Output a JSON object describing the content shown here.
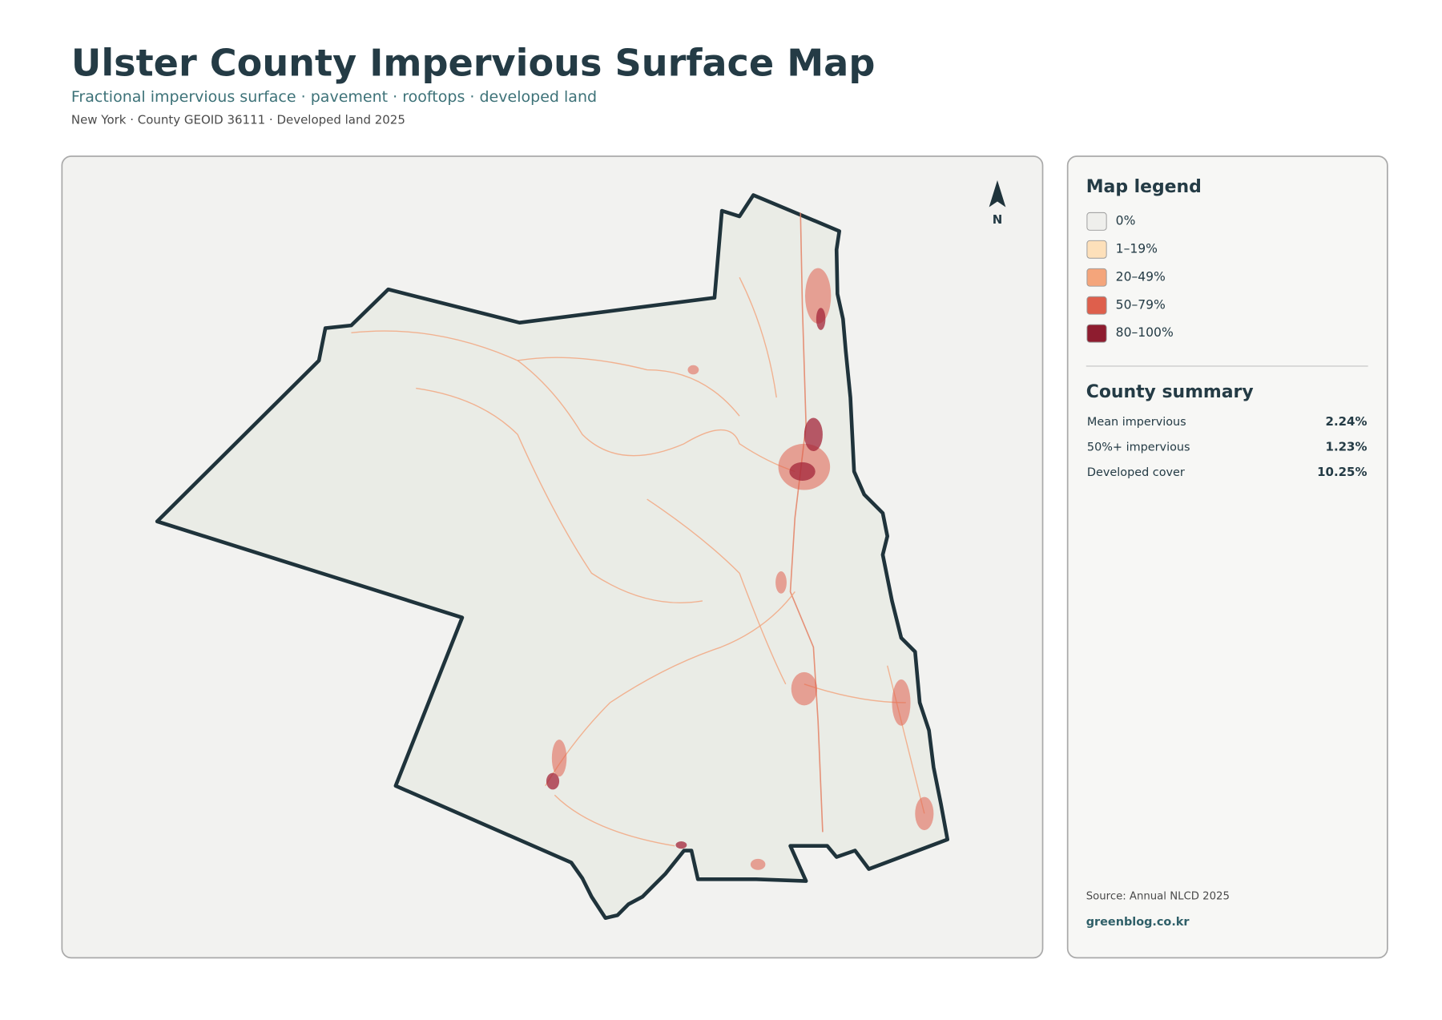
{
  "header": {
    "title": "Ulster County Impervious Surface Map",
    "subtitle": "Fractional impervious surface · pavement · rooftops · developed land",
    "meta": "New York · County GEOID 36111 · Developed land 2025"
  },
  "map": {
    "north_label": "N"
  },
  "legend": {
    "title": "Map legend",
    "items": [
      {
        "label": "0%",
        "color": "#efefec"
      },
      {
        "label": "1–19%",
        "color": "#fde0ba"
      },
      {
        "label": "20–49%",
        "color": "#f4a57b"
      },
      {
        "label": "50–79%",
        "color": "#de5f4c"
      },
      {
        "label": "80–100%",
        "color": "#8e1c2f"
      }
    ]
  },
  "summary": {
    "title": "County summary",
    "rows": [
      [
        "Mean impervious",
        "2.24%"
      ],
      [
        "50%+ impervious",
        "1.23%"
      ],
      [
        "Developed cover",
        "10.25%"
      ]
    ]
  },
  "footer": {
    "source": "Source: Annual NLCD 2025",
    "site": "greenblog.co.kr"
  }
}
